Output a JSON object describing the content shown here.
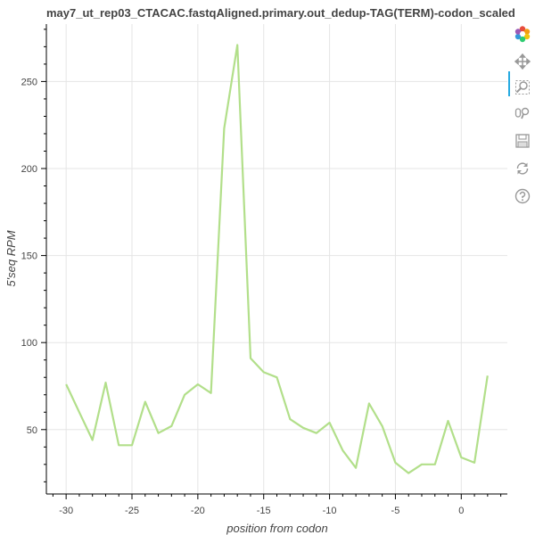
{
  "chart_data": {
    "type": "line",
    "title": "may7_ut_rep03_CTACAC.fastqAligned.primary.out_dedup-TAG(TERM)-codon_scaled",
    "xlabel": "position from codon",
    "ylabel": "5'seq RPM",
    "xlim": [
      -31.5,
      3.5
    ],
    "ylim": [
      13,
      283
    ],
    "x_ticks": [
      -30,
      -25,
      -20,
      -15,
      -10,
      -5,
      0
    ],
    "x_tick_labels": [
      "-30",
      "-25",
      "-20",
      "-15",
      "-10",
      "-5",
      "0"
    ],
    "y_ticks": [
      50,
      100,
      150,
      200,
      250
    ],
    "y_tick_labels": [
      "50",
      "100",
      "150",
      "200",
      "250"
    ],
    "grid": true,
    "series": [
      {
        "color": "#b2df8a",
        "x": [
          -30,
          -29,
          -28,
          -27,
          -26,
          -25,
          -24,
          -23,
          -22,
          -21,
          -20,
          -19,
          -18,
          -17,
          -16,
          -15,
          -14,
          -13,
          -12,
          -11,
          -10,
          -9,
          -8,
          -7,
          -6,
          -5,
          -4,
          -3,
          -2,
          -1,
          0,
          1,
          2
        ],
        "y": [
          76,
          60,
          44,
          77,
          41,
          41,
          66,
          48,
          52,
          70,
          76,
          71,
          223,
          271,
          91,
          83,
          80,
          56,
          51,
          48,
          54,
          38,
          28,
          65,
          52,
          31,
          25,
          30,
          30,
          55,
          34,
          31,
          81
        ]
      }
    ]
  },
  "toolbar": {
    "tools": [
      "bokeh-logo-icon",
      "pan-icon",
      "box-zoom-icon",
      "wheel-zoom-icon",
      "save-icon",
      "reset-icon",
      "help-icon"
    ]
  }
}
